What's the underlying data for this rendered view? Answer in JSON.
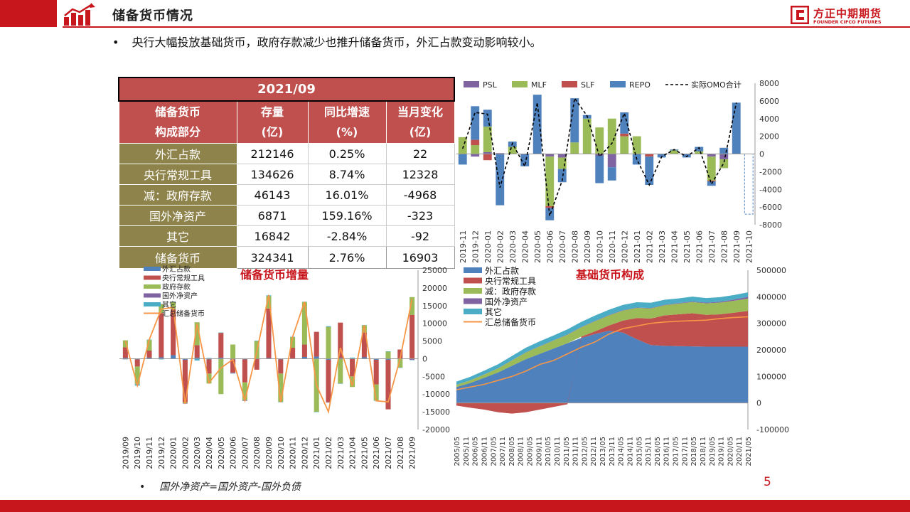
{
  "header": {
    "title": "储备货币情况",
    "brand_cn": "方正中期期货",
    "brand_en": "FOUNDER CIFCO FUTURES"
  },
  "bullet": {
    "text": "央行大幅投放基础货币，政府存款减少也推升储备货币，外汇占款变动影响较小。"
  },
  "table": {
    "date": "2021/09",
    "headers": [
      {
        "l1": "储备货币",
        "l2": "构成部分"
      },
      {
        "l1": "存量",
        "l2": "(亿)"
      },
      {
        "l1": "同比增速",
        "l2": "(%)"
      },
      {
        "l1": "当月变化",
        "l2": "(亿)"
      }
    ],
    "rows": [
      {
        "label": "外汇占款",
        "stock": "212146",
        "yoy": "0.25%",
        "chg": "22"
      },
      {
        "label": "央行常规工具",
        "stock": "134626",
        "yoy": "8.74%",
        "chg": "12328"
      },
      {
        "label": "减：政府存款",
        "stock": "46143",
        "yoy": "16.01%",
        "chg": "-4968"
      },
      {
        "label": "国外净资产",
        "stock": "6871",
        "yoy": "159.16%",
        "chg": "-323"
      },
      {
        "label": "其它",
        "stock": "16842",
        "yoy": "-2.84%",
        "chg": "-92"
      }
    ],
    "total": {
      "label": "储备货币",
      "stock": "324341",
      "yoy": "2.76%",
      "chg": "16903"
    }
  },
  "chart_data": [
    {
      "type": "bar",
      "id": "omo",
      "stacked": true,
      "categories": [
        "2019-11",
        "2019-12",
        "2020-01",
        "2020-02",
        "2020-03",
        "2020-04",
        "2020-05",
        "2020-06",
        "2020-07",
        "2020-08",
        "2020-09",
        "2020-10",
        "2020-11",
        "2020-12",
        "2021-01",
        "2021-02",
        "2021-03",
        "2021-04",
        "2021-05",
        "2021-06",
        "2021-07",
        "2021-08",
        "2021-09",
        "2021-10"
      ],
      "series": [
        {
          "name": "PSL",
          "color": "#8064a2",
          "values": [
            0,
            -300,
            200,
            100,
            0,
            0,
            0,
            -300,
            -400,
            0,
            0,
            -200,
            -1500,
            0,
            0,
            0,
            0,
            0,
            0,
            0,
            -300,
            -600,
            0,
            0
          ]
        },
        {
          "name": "MLF",
          "color": "#9bbb59",
          "values": [
            1900,
            1000,
            2900,
            0,
            800,
            0,
            0,
            -5600,
            -1300,
            1300,
            4000,
            3000,
            4000,
            2000,
            2000,
            0,
            0,
            400,
            0,
            300,
            -2700,
            -1000,
            0,
            0
          ]
        },
        {
          "name": "SLF",
          "color": "#c0504d",
          "values": [
            0,
            600,
            -700,
            0,
            0,
            0,
            0,
            -200,
            0,
            0,
            0,
            0,
            0,
            300,
            0,
            -300,
            0,
            0,
            0,
            0,
            -100,
            0,
            0,
            0
          ]
        },
        {
          "name": "REPO",
          "color": "#4f81bd",
          "values": [
            -1200,
            3800,
            1900,
            -5800,
            600,
            -1400,
            6700,
            -1400,
            -1500,
            5000,
            400,
            -3100,
            -1500,
            2400,
            -1200,
            -3200,
            -400,
            100,
            -400,
            500,
            -500,
            700,
            5800,
            -6800
          ]
        }
      ],
      "line": {
        "name": "实际OMO合计",
        "color": "#000000",
        "values": [
          600,
          4700,
          4500,
          -3800,
          1200,
          -1400,
          5800,
          -7000,
          -3000,
          6300,
          4300,
          -300,
          1200,
          4600,
          -600,
          -3500,
          -300,
          500,
          -300,
          700,
          -3400,
          -1000,
          5800,
          null
        ]
      },
      "projected_last": true,
      "ylim": [
        -8000,
        8000
      ],
      "yticks": [
        -8000,
        -6000,
        -4000,
        -2000,
        0,
        2000,
        4000,
        6000,
        8000
      ]
    },
    {
      "type": "bar",
      "id": "increment",
      "stacked": true,
      "title": "储备货币增量",
      "categories": [
        "2019/09",
        "2019/10",
        "2019/11",
        "2019/12",
        "2020/01",
        "2020/02",
        "2020/03",
        "2020/04",
        "2020/05",
        "2020/06",
        "2020/07",
        "2020/08",
        "2020/09",
        "2020/10",
        "2020/11",
        "2020/12",
        "2021/01",
        "2021/02",
        "2021/03",
        "2021/04",
        "2021/05",
        "2021/06",
        "2021/07",
        "2021/08",
        "2021/09"
      ],
      "series": [
        {
          "name": "外汇占款",
          "color": "#4f81bd",
          "values": [
            200,
            -200,
            300,
            400,
            1000,
            -300,
            300,
            -200,
            300,
            -200,
            -200,
            -100,
            200,
            -200,
            100,
            500,
            600,
            -300,
            200,
            100,
            400,
            -300,
            -300,
            100,
            100
          ]
        },
        {
          "name": "央行常规工具",
          "color": "#c0504d",
          "values": [
            3000,
            -2000,
            2000,
            12500,
            13000,
            -12000,
            3500,
            -4000,
            7000,
            -3800,
            -6500,
            -3000,
            14000,
            -4000,
            3000,
            3500,
            7000,
            -12000,
            10000,
            -5000,
            7000,
            -7000,
            -14000,
            2500,
            12300
          ]
        },
        {
          "name": "政府存款",
          "color": "#9bbb59",
          "values": [
            2000,
            -5000,
            3000,
            2500,
            2000,
            -300,
            6500,
            -2800,
            -10000,
            4000,
            -5000,
            5000,
            3500,
            -8000,
            3000,
            12000,
            -15000,
            9000,
            -7000,
            -3000,
            2000,
            -4500,
            2000,
            -2500,
            5000
          ]
        },
        {
          "name": "国外净资产",
          "color": "#8064a2",
          "values": [
            0,
            -100,
            0,
            100,
            -100,
            -100,
            0,
            0,
            0,
            -100,
            -200,
            0,
            0,
            0,
            0,
            0,
            0,
            -100,
            0,
            0,
            0,
            0,
            0,
            0,
            -300
          ]
        },
        {
          "name": "其它",
          "color": "#4bacc6",
          "values": [
            -200,
            -300,
            100,
            -200,
            100,
            100,
            -500,
            200,
            100,
            -100,
            100,
            100,
            200,
            -100,
            100,
            100,
            -100,
            200,
            -100,
            200,
            100,
            -100,
            100,
            -100,
            -100
          ]
        }
      ],
      "line": {
        "name": "汇总储备货币",
        "color": "#f79646",
        "values": [
          5000,
          -7600,
          5400,
          14000,
          14500,
          -12800,
          9800,
          -6800,
          -2600,
          -200,
          -11800,
          2000,
          18000,
          -12300,
          6200,
          16100,
          -7500,
          -15000,
          3100,
          -7700,
          9500,
          -11900,
          -12200,
          0,
          16903
        ]
      },
      "ylim": [
        -20000,
        25000
      ],
      "yticks": [
        -20000,
        -15000,
        -10000,
        -5000,
        0,
        5000,
        10000,
        15000,
        20000,
        25000
      ]
    },
    {
      "type": "area",
      "id": "composition",
      "stacked": true,
      "title": "基础货币构成",
      "x_range": [
        "2005/05",
        "2021/09"
      ],
      "xticks": [
        "2005/05",
        "2005/11",
        "2006/05",
        "2006/11",
        "2007/05",
        "2007/11",
        "2008/05",
        "2008/11",
        "2009/05",
        "2009/11",
        "2010/05",
        "2010/11",
        "2011/05",
        "2011/11",
        "2012/05",
        "2012/11",
        "2013/05",
        "2013/11",
        "2014/05",
        "2014/11",
        "2015/05",
        "2015/11",
        "2016/05",
        "2016/11",
        "2017/05",
        "2017/11",
        "2018/05",
        "2018/11",
        "2019/05",
        "2019/11",
        "2020/05",
        "2020/11",
        "2021/05"
      ],
      "series": [
        {
          "name": "外汇占款",
          "color": "#4f81bd",
          "values": [
            60000,
            75000,
            95000,
            115000,
            140000,
            165000,
            185000,
            205000,
            225000,
            245000,
            260000,
            272000,
            265000,
            240000,
            218000,
            215000,
            214000,
            213000,
            212000,
            212000,
            212000,
            212146
          ]
        },
        {
          "name": "央行常规工具",
          "color": "#c0504d",
          "values": [
            -10000,
            -18000,
            -25000,
            -35000,
            -40000,
            -35000,
            -25000,
            -15000,
            -5000,
            5000,
            10000,
            20000,
            45000,
            80000,
            100000,
            115000,
            120000,
            125000,
            120000,
            122000,
            128000,
            134626
          ]
        },
        {
          "name": "减：政府存款",
          "color": "#9bbb59",
          "values": [
            8000,
            10000,
            12000,
            15000,
            20000,
            25000,
            28000,
            30000,
            32000,
            35000,
            38000,
            38000,
            38000,
            38000,
            38000,
            38000,
            40000,
            42000,
            43000,
            44000,
            45000,
            46143
          ]
        },
        {
          "name": "国外净资产",
          "color": "#8064a2",
          "values": [
            500,
            600,
            700,
            800,
            900,
            1000,
            1100,
            1200,
            1300,
            1400,
            1500,
            1500,
            1500,
            1500,
            1600,
            1800,
            2000,
            2400,
            2800,
            3500,
            4500,
            6871
          ]
        },
        {
          "name": "其它",
          "color": "#4bacc6",
          "values": [
            12000,
            13000,
            14000,
            15000,
            16000,
            17000,
            18000,
            18000,
            19000,
            19000,
            20000,
            20000,
            20000,
            20000,
            20000,
            19000,
            18000,
            18000,
            17500,
            17000,
            17000,
            16842
          ]
        }
      ],
      "line": {
        "name": "汇总储备货币",
        "color": "#f79646",
        "values": [
          50000,
          60000,
          70000,
          85000,
          100000,
          120000,
          145000,
          160000,
          185000,
          210000,
          230000,
          260000,
          280000,
          290000,
          300000,
          305000,
          308000,
          310000,
          312000,
          318000,
          322000,
          324341
        ]
      },
      "ylim": [
        -100000,
        500000
      ],
      "yticks": [
        -100000,
        0,
        100000,
        200000,
        300000,
        400000,
        500000
      ]
    }
  ],
  "footnote": {
    "text": "国外净资产=国外资产-国外负债"
  },
  "page": {
    "number": "5"
  }
}
